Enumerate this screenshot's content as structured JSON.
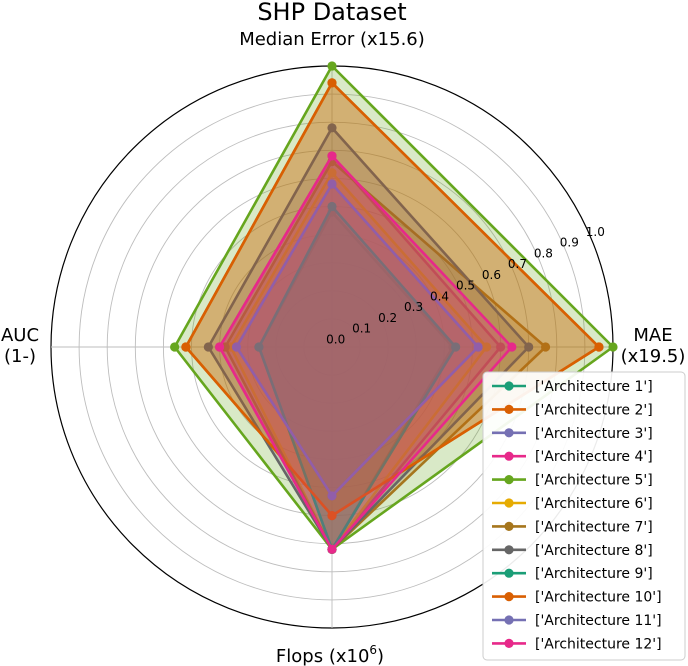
{
  "chart_data": {
    "type": "radar",
    "title": "SHP Dataset",
    "axes": [
      {
        "label": "Median Error (x15.6)",
        "label_lines": [
          "Median Error (x15.6)"
        ]
      },
      {
        "label": "MAE (x19.5)",
        "label_lines": [
          "MAE",
          "(x19.5)"
        ]
      },
      {
        "label": "Flops (x10^6)",
        "label_lines": [
          "Flops (x10",
          "6",
          ")"
        ]
      },
      {
        "label": "AUC (1-)",
        "label_lines": [
          "AUC",
          "(1-)"
        ]
      }
    ],
    "rlim": [
      0,
      1.0
    ],
    "radial_ticks": [
      "0.0",
      "0.1",
      "0.2",
      "0.3",
      "0.4",
      "0.5",
      "0.6",
      "0.7",
      "0.8",
      "0.9",
      "1.0"
    ],
    "grid": true,
    "legend_position": "bottom-right",
    "series": [
      {
        "name": "['Architecture 1']",
        "color": "#1b9e77",
        "values": [
          0.48,
          0.43,
          0.72,
          0.26
        ]
      },
      {
        "name": "['Architecture 2']",
        "color": "#d95f02",
        "values": [
          0.94,
          0.95,
          0.6,
          0.52
        ]
      },
      {
        "name": "['Architecture 3']",
        "color": "#7570b3",
        "values": [
          0.58,
          0.52,
          0.53,
          0.34
        ]
      },
      {
        "name": "['Architecture 4']",
        "color": "#e7298a",
        "values": [
          0.68,
          0.6,
          0.72,
          0.4
        ]
      },
      {
        "name": "['Architecture 5']",
        "color": "#66a61e",
        "values": [
          1.0,
          1.0,
          0.72,
          0.56
        ]
      },
      {
        "name": "['Architecture 6']",
        "color": "#e6ab02",
        "values": [
          0.62,
          0.55,
          0.72,
          0.36
        ]
      },
      {
        "name": "['Architecture 7']",
        "color": "#a6761d",
        "values": [
          0.66,
          0.76,
          0.72,
          0.38
        ]
      },
      {
        "name": "['Architecture 8']",
        "color": "#666666",
        "values": [
          0.78,
          0.7,
          0.72,
          0.44
        ]
      },
      {
        "name": "['Architecture 9']",
        "color": "#1b9e77",
        "values": [
          0.5,
          0.44,
          0.72,
          0.26
        ]
      },
      {
        "name": "['Architecture 10']",
        "color": "#d95f02",
        "values": [
          0.94,
          0.95,
          0.6,
          0.52
        ]
      },
      {
        "name": "['Architecture 11']",
        "color": "#7570b3",
        "values": [
          0.58,
          0.52,
          0.53,
          0.34
        ]
      },
      {
        "name": "['Architecture 12']",
        "color": "#e7298a",
        "values": [
          0.68,
          0.64,
          0.72,
          0.4
        ]
      }
    ]
  }
}
